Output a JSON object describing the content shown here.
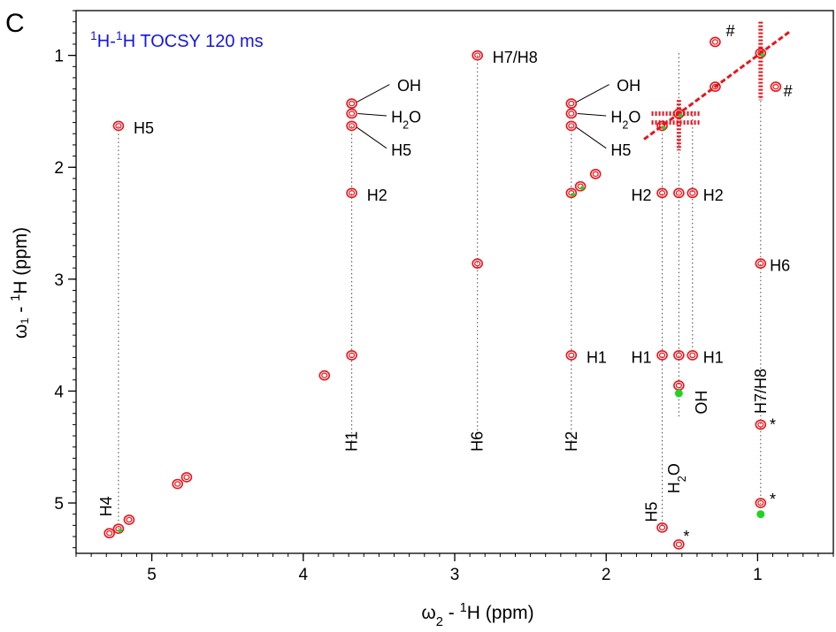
{
  "panel_letter": "C",
  "chart_data": {
    "type": "scatter",
    "subtype": "2D NMR contour spectrum",
    "title": "¹H-¹H TOCSY 120 ms",
    "xlabel": "ω₂ - ¹H  (ppm)",
    "ylabel": "ω₁ - ¹H  (ppm)",
    "xlim": [
      5.5,
      0.5
    ],
    "ylim": [
      5.45,
      0.6
    ],
    "x_reversed": true,
    "y_reversed": true,
    "xticks": [
      5,
      4,
      3,
      2,
      1
    ],
    "yticks": [
      1,
      2,
      3,
      4,
      5
    ],
    "grid": false,
    "colors": {
      "positive": "#e8141b",
      "negative": "#22d322",
      "title": "#1515e6",
      "guide": "#555555"
    },
    "peaks": [
      {
        "x": 5.22,
        "y": 1.63,
        "sign": "pos"
      },
      {
        "x": 5.22,
        "y": 5.23,
        "sign": "both"
      },
      {
        "x": 5.28,
        "y": 5.27,
        "sign": "pos"
      },
      {
        "x": 5.15,
        "y": 5.15,
        "sign": "pos"
      },
      {
        "x": 4.83,
        "y": 4.83,
        "sign": "pos"
      },
      {
        "x": 4.77,
        "y": 4.77,
        "sign": "pos"
      },
      {
        "x": 3.86,
        "y": 3.86,
        "sign": "pos"
      },
      {
        "x": 3.68,
        "y": 1.43,
        "sign": "pos"
      },
      {
        "x": 3.68,
        "y": 1.52,
        "sign": "pos"
      },
      {
        "x": 3.68,
        "y": 1.63,
        "sign": "pos"
      },
      {
        "x": 3.68,
        "y": 2.23,
        "sign": "pos"
      },
      {
        "x": 3.68,
        "y": 3.68,
        "sign": "pos"
      },
      {
        "x": 2.85,
        "y": 1.0,
        "sign": "pos"
      },
      {
        "x": 2.85,
        "y": 2.86,
        "sign": "pos"
      },
      {
        "x": 2.23,
        "y": 1.43,
        "sign": "pos"
      },
      {
        "x": 2.23,
        "y": 1.52,
        "sign": "pos"
      },
      {
        "x": 2.23,
        "y": 1.63,
        "sign": "pos"
      },
      {
        "x": 2.23,
        "y": 2.23,
        "sign": "both"
      },
      {
        "x": 2.17,
        "y": 2.17,
        "sign": "both"
      },
      {
        "x": 2.07,
        "y": 2.06,
        "sign": "pos"
      },
      {
        "x": 2.23,
        "y": 3.68,
        "sign": "pos"
      },
      {
        "x": 1.63,
        "y": 1.63,
        "sign": "both"
      },
      {
        "x": 1.63,
        "y": 2.23,
        "sign": "pos"
      },
      {
        "x": 1.63,
        "y": 3.68,
        "sign": "pos"
      },
      {
        "x": 1.63,
        "y": 5.22,
        "sign": "pos"
      },
      {
        "x": 1.52,
        "y": 1.52,
        "sign": "both"
      },
      {
        "x": 1.52,
        "y": 2.23,
        "sign": "pos"
      },
      {
        "x": 1.52,
        "y": 3.68,
        "sign": "pos"
      },
      {
        "x": 1.52,
        "y": 3.95,
        "sign": "pos"
      },
      {
        "x": 1.52,
        "y": 4.02,
        "sign": "neg"
      },
      {
        "x": 1.52,
        "y": 5.37,
        "sign": "pos"
      },
      {
        "x": 1.43,
        "y": 2.23,
        "sign": "pos"
      },
      {
        "x": 1.43,
        "y": 3.68,
        "sign": "pos"
      },
      {
        "x": 1.28,
        "y": 0.88,
        "sign": "pos"
      },
      {
        "x": 1.28,
        "y": 1.28,
        "sign": "pos"
      },
      {
        "x": 0.98,
        "y": 0.98,
        "sign": "both"
      },
      {
        "x": 0.98,
        "y": 2.86,
        "sign": "pos"
      },
      {
        "x": 0.98,
        "y": 4.3,
        "sign": "pos"
      },
      {
        "x": 0.98,
        "y": 5.0,
        "sign": "pos"
      },
      {
        "x": 0.98,
        "y": 5.1,
        "sign": "neg"
      },
      {
        "x": 0.88,
        "y": 1.28,
        "sign": "pos"
      }
    ],
    "band_ridges": [
      {
        "x1": 1.7,
        "x2": 1.38,
        "y": 1.52
      },
      {
        "x1": 1.7,
        "x2": 1.38,
        "y": 1.6
      }
    ],
    "stripe_ridges": [
      {
        "x": 1.52,
        "y1": 1.4,
        "y2": 1.85
      },
      {
        "x": 0.98,
        "y1": 0.7,
        "y2": 1.4
      }
    ],
    "diagonal": {
      "x1": 1.75,
      "x2": 0.78
    },
    "guides": [
      {
        "x": 5.22,
        "y1": 1.63,
        "y2": 5.23
      },
      {
        "x": 3.68,
        "y1": 1.63,
        "y2": 4.45
      },
      {
        "x": 2.85,
        "y1": 1.0,
        "y2": 4.45
      },
      {
        "x": 2.23,
        "y1": 1.63,
        "y2": 4.45
      },
      {
        "x": 1.63,
        "y1": 1.63,
        "y2": 5.2
      },
      {
        "x": 1.52,
        "y1": 0.98,
        "y2": 4.25
      },
      {
        "x": 1.43,
        "y1": 1.5,
        "y2": 3.65
      },
      {
        "x": 0.98,
        "y1": 1.3,
        "y2": 5.1
      }
    ],
    "labels": [
      {
        "text": "H5",
        "x": 5.12,
        "y": 1.65,
        "anchor": "start"
      },
      {
        "text": "H4",
        "x": 5.3,
        "y": 5.03,
        "rotate": true
      },
      {
        "text": "OH",
        "x": 3.38,
        "y": 1.27,
        "anchor": "start"
      },
      {
        "text": "H₂O",
        "x": 3.42,
        "y": 1.55,
        "anchor": "start"
      },
      {
        "text": "H5",
        "x": 3.42,
        "y": 1.85,
        "anchor": "start"
      },
      {
        "text": "H2",
        "x": 3.58,
        "y": 2.25,
        "anchor": "start"
      },
      {
        "text": "H1",
        "x": 3.68,
        "y": 4.45,
        "rotate": true
      },
      {
        "text": "H7/H8",
        "x": 2.75,
        "y": 1.02,
        "anchor": "start"
      },
      {
        "text": "H6",
        "x": 2.85,
        "y": 4.45,
        "rotate": true
      },
      {
        "text": "OH",
        "x": 1.93,
        "y": 1.27,
        "anchor": "start"
      },
      {
        "text": "H₂O",
        "x": 1.97,
        "y": 1.55,
        "anchor": "start"
      },
      {
        "text": "H5",
        "x": 1.97,
        "y": 1.85,
        "anchor": "start"
      },
      {
        "text": "H1",
        "x": 2.13,
        "y": 3.7,
        "anchor": "start"
      },
      {
        "text": "H2",
        "x": 2.23,
        "y": 4.45,
        "rotate": true
      },
      {
        "text": "H2",
        "x": 1.7,
        "y": 2.25,
        "anchor": "end"
      },
      {
        "text": "H1",
        "x": 1.7,
        "y": 3.7,
        "anchor": "end"
      },
      {
        "text": "H5",
        "x": 1.7,
        "y": 5.08,
        "rotate": true
      },
      {
        "text": "H₂O",
        "x": 1.55,
        "y": 4.78,
        "rotate": true
      },
      {
        "text": "H2",
        "x": 1.36,
        "y": 2.25,
        "anchor": "start"
      },
      {
        "text": "H1",
        "x": 1.36,
        "y": 3.7,
        "anchor": "start"
      },
      {
        "text": "OH",
        "x": 1.37,
        "y": 4.1,
        "rotate": true
      },
      {
        "text": "H6",
        "x": 0.92,
        "y": 2.88,
        "anchor": "start"
      },
      {
        "text": "H7/H8",
        "x": 0.98,
        "y": 4.0,
        "rotate": true
      }
    ],
    "markers": [
      {
        "text": "#",
        "x": 1.18,
        "y": 0.78
      },
      {
        "text": "#",
        "x": 0.8,
        "y": 1.32
      },
      {
        "text": "*",
        "x": 0.9,
        "y": 4.3
      },
      {
        "text": "*",
        "x": 0.9,
        "y": 4.97
      },
      {
        "text": "*",
        "x": 1.47,
        "y": 5.3
      }
    ],
    "leaders": [
      {
        "x1": 3.65,
        "y1": 1.42,
        "x2": 3.43,
        "y2": 1.26
      },
      {
        "x1": 3.64,
        "y1": 1.52,
        "x2": 3.45,
        "y2": 1.54
      },
      {
        "x1": 3.65,
        "y1": 1.64,
        "x2": 3.45,
        "y2": 1.83
      },
      {
        "x1": 2.2,
        "y1": 1.42,
        "x2": 1.98,
        "y2": 1.26
      },
      {
        "x1": 2.19,
        "y1": 1.52,
        "x2": 2.0,
        "y2": 1.54
      },
      {
        "x1": 2.2,
        "y1": 1.64,
        "x2": 2.0,
        "y2": 1.83
      }
    ]
  }
}
